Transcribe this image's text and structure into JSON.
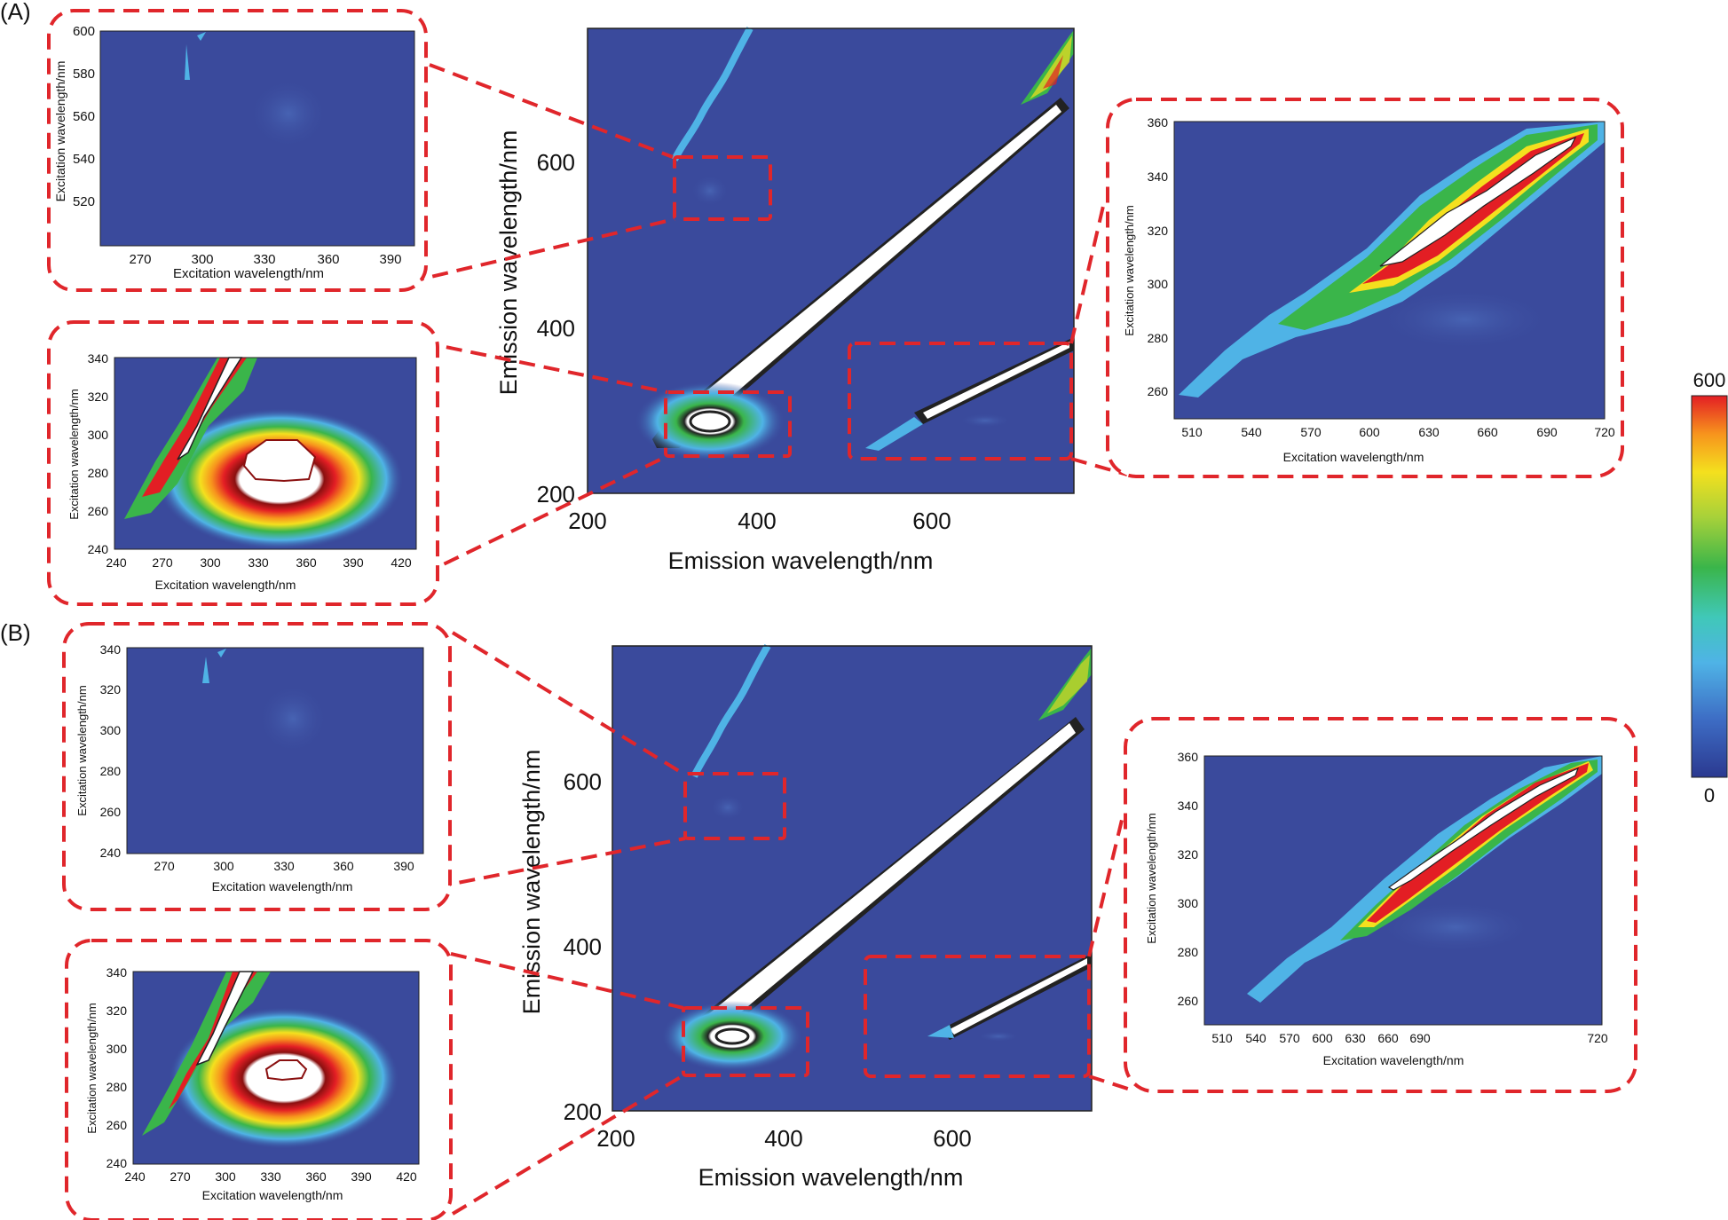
{
  "panels": [
    {
      "label": "(A)",
      "main": {
        "xlabel": "Emission wavelength/nm",
        "ylabel": "Emission wavelength/nm",
        "xticks": [
          "200",
          "400",
          "600"
        ],
        "yticks": [
          "200",
          "400",
          "600"
        ]
      },
      "insets": [
        {
          "id": "a-top-left",
          "xlabel": "Excitation wavelength/nm",
          "ylabel": "Excitation wavelength/nm",
          "xticks": [
            "270",
            "300",
            "330",
            "360",
            "390"
          ],
          "yticks": [
            "520",
            "540",
            "560",
            "580",
            "600"
          ]
        },
        {
          "id": "a-bottom-left",
          "xlabel": "Excitation wavelength/nm",
          "ylabel": "Excitation wavelength/nm",
          "xticks": [
            "240",
            "270",
            "300",
            "330",
            "360",
            "390",
            "420"
          ],
          "yticks": [
            "240",
            "260",
            "280",
            "300",
            "320",
            "340"
          ]
        },
        {
          "id": "a-right",
          "xlabel": "Excitation wavelength/nm",
          "ylabel": "Excitation wavelength/nm",
          "xticks": [
            "510",
            "540",
            "570",
            "600",
            "630",
            "660",
            "690",
            "720"
          ],
          "yticks": [
            "260",
            "280",
            "300",
            "320",
            "340",
            "360"
          ]
        }
      ]
    },
    {
      "label": "(B)",
      "main": {
        "xlabel": "Emission wavelength/nm",
        "ylabel": "Emission wavelength/nm",
        "xticks": [
          "200",
          "400",
          "600"
        ],
        "yticks": [
          "200",
          "400",
          "600"
        ]
      },
      "insets": [
        {
          "id": "b-top-left",
          "xlabel": "Excitation wavelength/nm",
          "ylabel": "Excitation wavelength/nm",
          "xticks": [
            "270",
            "300",
            "330",
            "360",
            "390"
          ],
          "yticks": [
            "240",
            "260",
            "280",
            "300",
            "320",
            "340"
          ]
        },
        {
          "id": "b-bottom-left",
          "xlabel": "Excitation wavelength/nm",
          "ylabel": "Excitation wavelength/nm",
          "xticks": [
            "240",
            "270",
            "300",
            "330",
            "360",
            "390",
            "420"
          ],
          "yticks": [
            "240",
            "260",
            "280",
            "300",
            "320",
            "340"
          ]
        },
        {
          "id": "b-right",
          "xlabel": "Excitation wavelength/nm",
          "ylabel": "Excitation wavelength/nm",
          "xticks": [
            "510",
            "540",
            "570",
            "600",
            "630",
            "660",
            "690",
            "720"
          ],
          "yticks": [
            "260",
            "280",
            "300",
            "320",
            "340",
            "360"
          ]
        }
      ]
    }
  ],
  "colorbar": {
    "max_label": "600",
    "min_label": "0",
    "colors": [
      "#2b3990",
      "#3d6cc4",
      "#4fb3e6",
      "#40c8b8",
      "#3ab54a",
      "#a6d13a",
      "#f4e01e",
      "#f7941d",
      "#e31e24"
    ]
  },
  "palette": {
    "background": "#3a4a9c",
    "callout": "#e0262b",
    "peak": "#ffffff"
  },
  "chart_data": {
    "type": "heatmap",
    "description_levels": "excitation-emission fluorescence intensity, color scale 0 to 600",
    "panels": [
      {
        "name": "(A)",
        "xrange": [
          200,
          760
        ],
        "yrange": [
          200,
          760
        ]
      },
      {
        "name": "(B)",
        "xrange": [
          200,
          760
        ],
        "yrange": [
          200,
          760
        ]
      }
    ],
    "colorbar_range": [
      0,
      600
    ]
  }
}
